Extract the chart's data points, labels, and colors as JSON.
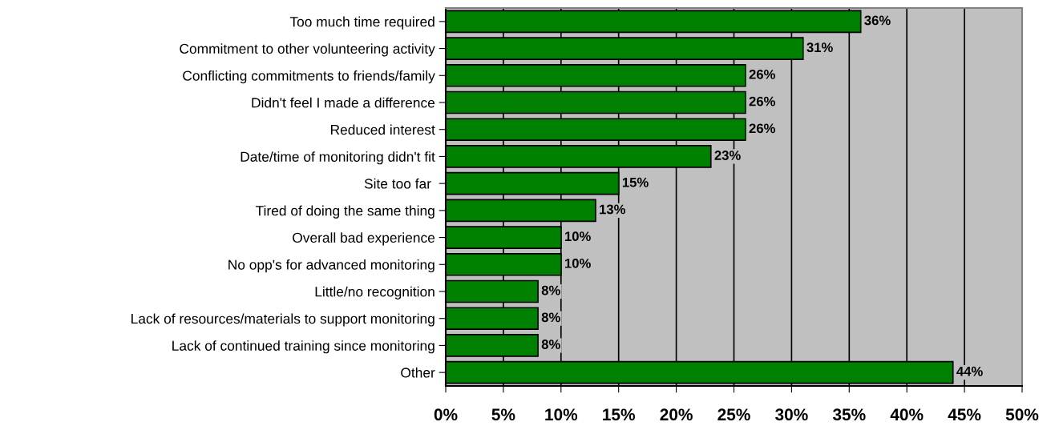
{
  "chart_data": {
    "type": "bar",
    "orientation": "horizontal",
    "categories": [
      "Too much time required",
      "Commitment to other volunteering activity",
      "Conflicting commitments to friends/family",
      "Didn't feel I made a difference",
      "Reduced interest",
      "Date/time of monitoring didn't fit",
      "Site too far ",
      "Tired of doing the same thing",
      "Overall bad experience",
      "No opp's for advanced monitoring",
      "Little/no recognition",
      "Lack of resources/materials to support monitoring",
      "Lack of continued training since monitoring",
      "Other"
    ],
    "values": [
      36,
      31,
      26,
      26,
      26,
      23,
      15,
      13,
      10,
      10,
      8,
      8,
      8,
      44
    ],
    "value_labels": [
      "36%",
      "31%",
      "26%",
      "26%",
      "26%",
      "23%",
      "15%",
      "13%",
      "10%",
      "10%",
      "8%",
      "8%",
      "8%",
      "44%"
    ],
    "color": "#008000",
    "xlim": [
      0,
      50
    ],
    "xticks": [
      {
        "value": 0,
        "label": "0%"
      },
      {
        "value": 5,
        "label": "5%"
      },
      {
        "value": 10,
        "label": "10%"
      },
      {
        "value": 15,
        "label": "15%"
      },
      {
        "value": 20,
        "label": "20%"
      },
      {
        "value": 25,
        "label": "25%"
      },
      {
        "value": 30,
        "label": "30%"
      },
      {
        "value": 35,
        "label": "35%"
      },
      {
        "value": 40,
        "label": "40%"
      },
      {
        "value": 45,
        "label": "45%"
      },
      {
        "value": 50,
        "label": "50%"
      }
    ],
    "grid": "x"
  }
}
